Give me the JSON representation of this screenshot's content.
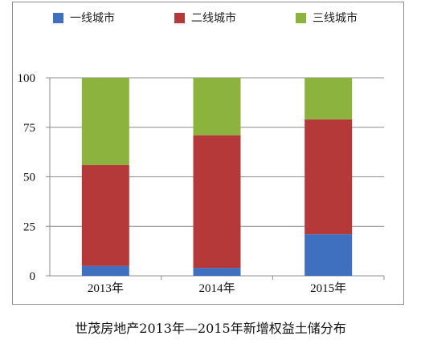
{
  "chart_data": {
    "type": "bar",
    "stacked": true,
    "categories": [
      "2013年",
      "2014年",
      "2015年"
    ],
    "series": [
      {
        "name": "一线城市",
        "values": [
          5,
          4,
          21
        ],
        "color": "#3f6fbf"
      },
      {
        "name": "二线城市",
        "values": [
          51,
          67,
          58
        ],
        "color": "#b6393a"
      },
      {
        "name": "三线城市",
        "values": [
          44,
          29,
          21
        ],
        "color": "#8db33f"
      }
    ],
    "yticks": [
      "0",
      "25",
      "50",
      "75",
      "100"
    ],
    "ylim": [
      0,
      100
    ],
    "grid": true,
    "legend_position": "top",
    "caption": "世茂房地产2013年—2015年新增权益土储分布"
  }
}
